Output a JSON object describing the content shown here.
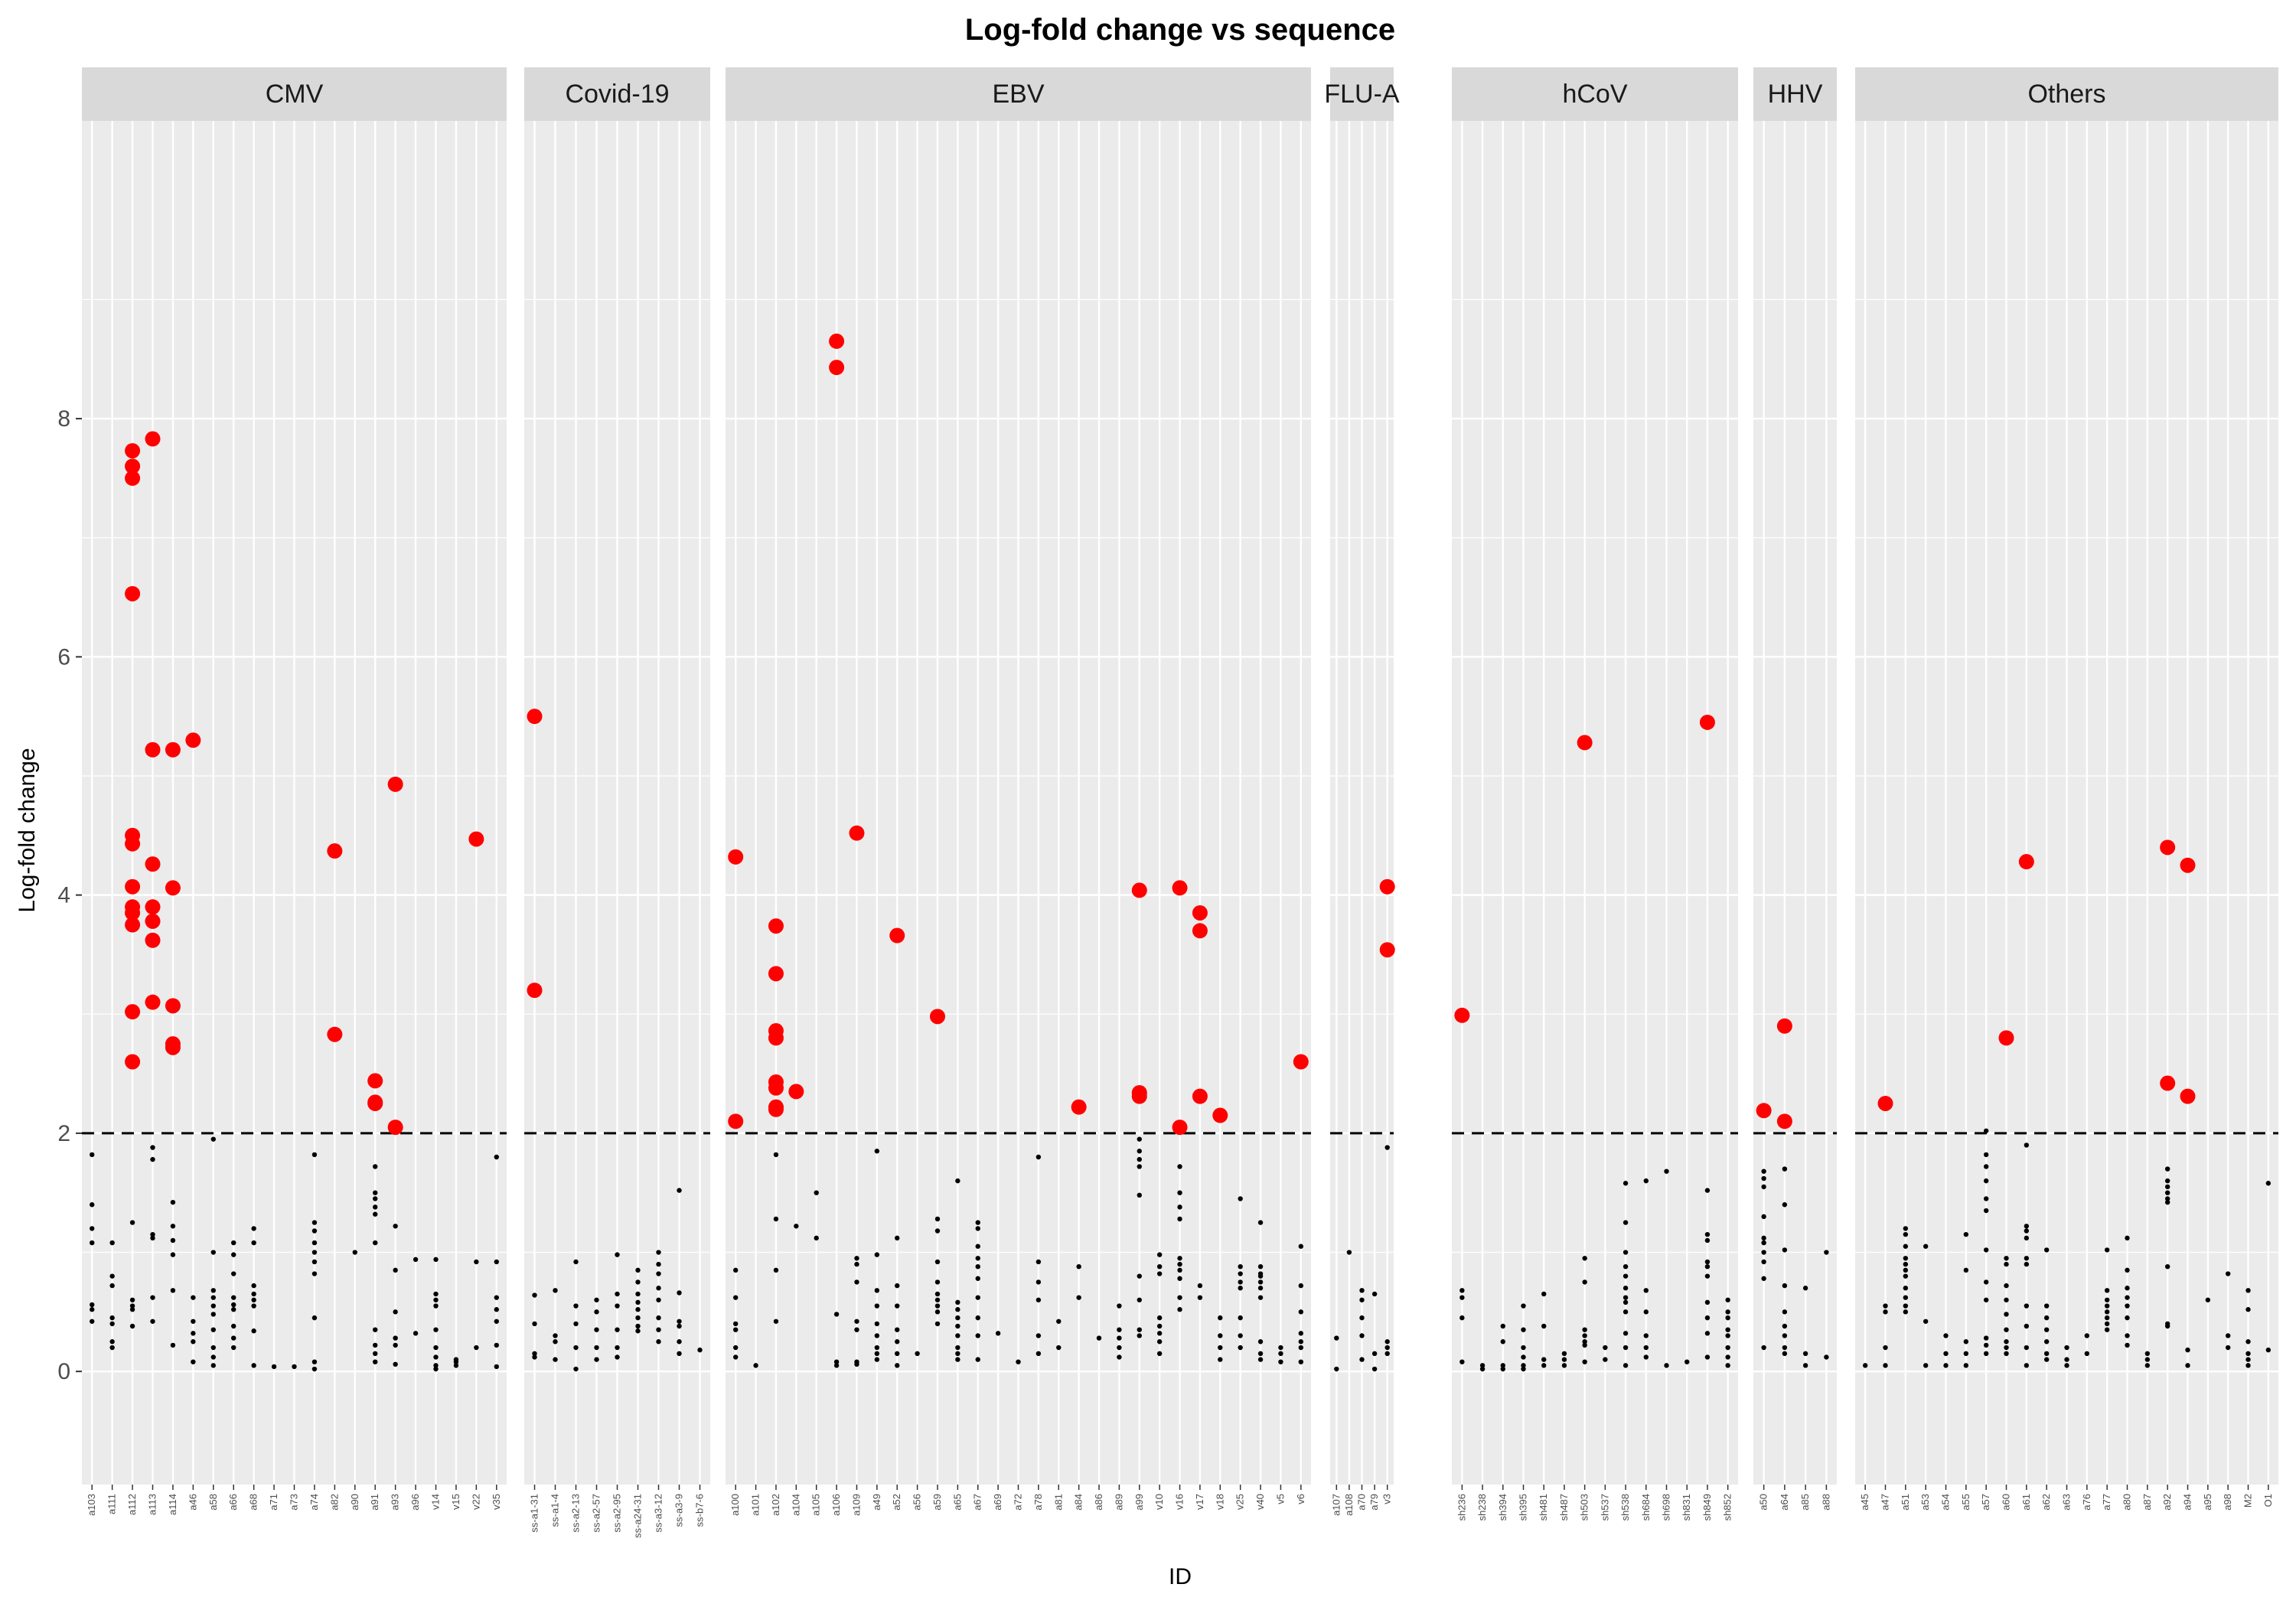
{
  "chart_data": {
    "type": "scatter",
    "title": "Log-fold change vs sequence",
    "xlabel": "ID",
    "ylabel": "Log-fold change",
    "ylim": [
      -0.95,
      10.5
    ],
    "yticks": [
      0,
      2,
      4,
      6,
      8
    ],
    "threshold": 2,
    "grid": true,
    "facet_by": "virus",
    "colors": {
      "above": "#ff0000",
      "below": "#000000",
      "strip": "#d9d9d9",
      "panel": "#ebebeb",
      "grid": "#ffffff"
    },
    "facets": [
      {
        "name": "CMV",
        "ids": [
          "a103",
          "a111",
          "a112",
          "a113",
          "a114",
          "a46",
          "a58",
          "a66",
          "a68",
          "a71",
          "a73",
          "a74",
          "a82",
          "a90",
          "a91",
          "a93",
          "a96",
          "v14",
          "v15",
          "v22",
          "v35"
        ],
        "points": {
          "a112": [
            7.73,
            7.6,
            7.5,
            6.53,
            4.5,
            4.43,
            4.07,
            3.9,
            3.85,
            3.75,
            3.02,
            2.6
          ],
          "a113": [
            7.83,
            5.22,
            4.26,
            3.9,
            3.78,
            3.62,
            3.1
          ],
          "a114": [
            5.22,
            4.06,
            3.07,
            2.75,
            2.72
          ],
          "a46": [
            5.3
          ],
          "a82": [
            4.37,
            2.83
          ],
          "a91": [
            2.44,
            2.26,
            2.25
          ],
          "a93": [
            4.93,
            2.05
          ],
          "v22": [
            4.47
          ]
        },
        "low_points": {
          "a103": [
            1.82,
            1.4,
            1.2,
            1.08,
            0.56,
            0.52,
            0.42
          ],
          "a111": [
            1.08,
            0.8,
            0.72,
            0.45,
            0.4,
            0.25,
            0.2
          ],
          "a112": [
            1.25,
            0.6,
            0.55,
            0.52,
            0.38
          ],
          "a113": [
            1.88,
            1.78,
            1.15,
            1.12,
            0.62,
            0.42
          ],
          "a114": [
            1.42,
            1.22,
            1.1,
            0.98,
            0.68,
            0.22
          ],
          "a46": [
            0.62,
            0.42,
            0.32,
            0.25,
            0.08
          ],
          "a58": [
            1.95,
            1.0,
            0.68,
            0.62,
            0.55,
            0.48,
            0.35,
            0.2,
            0.12,
            0.05
          ],
          "a66": [
            1.08,
            0.98,
            0.82,
            0.62,
            0.56,
            0.52,
            0.38,
            0.28,
            0.2
          ],
          "a68": [
            1.2,
            1.08,
            0.72,
            0.65,
            0.6,
            0.55,
            0.34,
            0.05
          ],
          "a71": [
            0.04
          ],
          "a73": [
            0.04
          ],
          "a74": [
            1.82,
            1.25,
            1.18,
            1.08,
            1.0,
            0.92,
            0.82,
            0.45,
            0.08,
            0.02
          ],
          "a90": [
            1.0
          ],
          "a91": [
            1.72,
            1.5,
            1.45,
            1.38,
            1.32,
            1.08,
            0.35,
            0.22,
            0.15,
            0.08
          ],
          "a93": [
            1.22,
            0.85,
            0.5,
            0.28,
            0.22,
            0.06
          ],
          "a96": [
            0.94,
            0.32
          ],
          "v14": [
            0.94,
            0.65,
            0.6,
            0.55,
            0.35,
            0.2,
            0.12,
            0.05,
            0.02
          ],
          "v15": [
            0.1,
            0.08,
            0.05
          ],
          "v22": [
            0.92,
            0.2
          ],
          "v35": [
            1.8,
            0.92,
            0.62,
            0.52,
            0.42,
            0.22,
            0.04
          ]
        }
      },
      {
        "name": "Covid-19",
        "ids": [
          "ss-a1-31",
          "ss-a1-4",
          "ss-a2-13",
          "ss-a2-57",
          "ss-a2-95",
          "ss-a24-31",
          "ss-a3-12",
          "ss-a3-9",
          "ss-b7-6"
        ],
        "points": {
          "ss-a1-31": [
            5.5,
            3.2
          ]
        },
        "low_points": {
          "ss-a1-31": [
            0.64,
            0.4,
            0.15,
            0.12
          ],
          "ss-a1-4": [
            0.68,
            0.3,
            0.25,
            0.1
          ],
          "ss-a2-13": [
            0.92,
            0.55,
            0.4,
            0.2,
            0.02
          ],
          "ss-a2-57": [
            0.6,
            0.5,
            0.35,
            0.2,
            0.1
          ],
          "ss-a2-95": [
            0.98,
            0.65,
            0.55,
            0.35,
            0.2,
            0.12
          ],
          "ss-a24-31": [
            0.85,
            0.75,
            0.65,
            0.58,
            0.52,
            0.45,
            0.38,
            0.34
          ],
          "ss-a3-12": [
            1.0,
            0.9,
            0.82,
            0.7,
            0.6,
            0.45,
            0.35,
            0.25
          ],
          "ss-a3-9": [
            1.52,
            0.66,
            0.42,
            0.38,
            0.25,
            0.15
          ],
          "ss-b7-6": [
            0.18
          ]
        }
      },
      {
        "name": "EBV",
        "ids": [
          "a100",
          "a101",
          "a102",
          "a104",
          "a105",
          "a106",
          "a109",
          "a49",
          "a52",
          "a56",
          "a59",
          "a65",
          "a67",
          "a69",
          "a72",
          "a78",
          "a81",
          "a84",
          "a86",
          "a89",
          "a99",
          "v10",
          "v16",
          "v17",
          "v18",
          "v25",
          "v40",
          "v5",
          "v6"
        ],
        "points": {
          "a100": [
            4.32,
            2.1
          ],
          "a102": [
            3.74,
            3.34,
            2.86,
            2.8,
            2.43,
            2.38,
            2.22,
            2.2
          ],
          "a104": [
            2.35
          ],
          "a106": [
            8.65,
            8.43
          ],
          "a109": [
            4.52
          ],
          "a52": [
            3.66
          ],
          "a59": [
            2.98
          ],
          "a84": [
            2.22
          ],
          "a99": [
            4.04,
            2.34,
            2.31
          ],
          "v16": [
            4.06,
            2.05
          ],
          "v17": [
            3.85,
            3.7,
            2.31
          ],
          "v18": [
            2.15
          ],
          "v6": [
            2.6
          ]
        },
        "low_points": {
          "a100": [
            0.85,
            0.62,
            0.4,
            0.35,
            0.2,
            0.12
          ],
          "a101": [
            0.05
          ],
          "a102": [
            1.82,
            1.28,
            0.85,
            0.42
          ],
          "a104": [
            1.22
          ],
          "a105": [
            1.5,
            1.12
          ],
          "a106": [
            0.48,
            0.08,
            0.05
          ],
          "a109": [
            0.95,
            0.9,
            0.75,
            0.42,
            0.35,
            0.08,
            0.06
          ],
          "a49": [
            1.85,
            0.98,
            0.68,
            0.55,
            0.4,
            0.3,
            0.2,
            0.15,
            0.1
          ],
          "a52": [
            1.12,
            0.72,
            0.55,
            0.35,
            0.25,
            0.15,
            0.05
          ],
          "a56": [
            0.15
          ],
          "a59": [
            1.28,
            1.18,
            0.92,
            0.75,
            0.65,
            0.6,
            0.55,
            0.5,
            0.4
          ],
          "a65": [
            1.6,
            0.58,
            0.52,
            0.45,
            0.38,
            0.3,
            0.2,
            0.15,
            0.1
          ],
          "a67": [
            1.25,
            1.2,
            1.05,
            0.95,
            0.88,
            0.78,
            0.62,
            0.45,
            0.3,
            0.1
          ],
          "a69": [
            0.32
          ],
          "a72": [
            0.08
          ],
          "a78": [
            1.8,
            0.92,
            0.75,
            0.6,
            0.3,
            0.15
          ],
          "a81": [
            0.42,
            0.2
          ],
          "a84": [
            0.88,
            0.62
          ],
          "a86": [
            0.28
          ],
          "a89": [
            0.55,
            0.35,
            0.28,
            0.2,
            0.12
          ],
          "a99": [
            1.95,
            1.85,
            1.78,
            1.72,
            1.48,
            0.8,
            0.6,
            0.35,
            0.3
          ],
          "v10": [
            0.98,
            0.88,
            0.82,
            0.45,
            0.38,
            0.32,
            0.25,
            0.15
          ],
          "v16": [
            1.72,
            1.5,
            1.38,
            1.28,
            0.95,
            0.9,
            0.85,
            0.78,
            0.62,
            0.52
          ],
          "v17": [
            0.72,
            0.62
          ],
          "v18": [
            0.45,
            0.3,
            0.2,
            0.1
          ],
          "v25": [
            1.45,
            0.88,
            0.82,
            0.75,
            0.7,
            0.45,
            0.3,
            0.2
          ],
          "v40": [
            1.25,
            0.88,
            0.82,
            0.8,
            0.75,
            0.7,
            0.62,
            0.25,
            0.15,
            0.1
          ],
          "v5": [
            0.2,
            0.15,
            0.08
          ],
          "v6": [
            1.05,
            0.72,
            0.5,
            0.32,
            0.25,
            0.2,
            0.08
          ]
        }
      },
      {
        "name": "FLU-A",
        "ids": [
          "a107",
          "a108",
          "a70",
          "a79",
          "v3"
        ],
        "points": {
          "v3": [
            4.07,
            3.54
          ]
        },
        "low_points": {
          "a107": [
            0.28,
            0.02
          ],
          "a108": [
            1.0
          ],
          "a70": [
            0.68,
            0.6,
            0.45,
            0.3,
            0.1
          ],
          "a79": [
            0.65,
            0.15,
            0.02
          ],
          "v3": [
            1.88,
            0.25,
            0.2,
            0.15
          ]
        }
      },
      {
        "name": "hCoV",
        "ids": [
          "sh236",
          "sh238",
          "sh394",
          "sh395",
          "sh481",
          "sh487",
          "sh503",
          "sh537",
          "sh538",
          "sh684",
          "sh698",
          "sh831",
          "sh849",
          "sh852"
        ],
        "points": {
          "sh236": [
            2.99
          ],
          "sh503": [
            5.28
          ],
          "sh849": [
            5.45
          ]
        },
        "low_points": {
          "sh236": [
            0.68,
            0.62,
            0.45,
            0.08
          ],
          "sh238": [
            0.05,
            0.02
          ],
          "sh394": [
            0.38,
            0.25,
            0.05,
            0.02
          ],
          "sh395": [
            0.55,
            0.35,
            0.2,
            0.12,
            0.05,
            0.02
          ],
          "sh481": [
            0.65,
            0.38,
            0.1,
            0.05
          ],
          "sh487": [
            0.15,
            0.1,
            0.05
          ],
          "sh503": [
            0.95,
            0.75,
            0.35,
            0.3,
            0.25,
            0.22,
            0.08
          ],
          "sh537": [
            0.2,
            0.1
          ],
          "sh538": [
            1.58,
            1.25,
            1.0,
            0.88,
            0.8,
            0.7,
            0.62,
            0.58,
            0.5,
            0.32,
            0.2,
            0.05
          ],
          "sh684": [
            1.6,
            0.68,
            0.5,
            0.3,
            0.2,
            0.12
          ],
          "sh698": [
            1.68,
            0.05
          ],
          "sh831": [
            0.08
          ],
          "sh849": [
            1.52,
            1.15,
            1.1,
            0.92,
            0.88,
            0.8,
            0.58,
            0.45,
            0.32,
            0.12
          ],
          "sh852": [
            0.6,
            0.5,
            0.45,
            0.35,
            0.3,
            0.2,
            0.12,
            0.05
          ]
        }
      },
      {
        "name": "HHV",
        "ids": [
          "a50",
          "a64",
          "a85",
          "a88"
        ],
        "points": {
          "a50": [
            2.19
          ],
          "a64": [
            2.9,
            2.1
          ]
        },
        "low_points": {
          "a50": [
            1.68,
            1.62,
            1.55,
            1.3,
            1.12,
            1.08,
            1.0,
            0.92,
            0.78,
            0.2
          ],
          "a64": [
            1.7,
            1.4,
            1.02,
            0.72,
            0.5,
            0.38,
            0.3,
            0.2,
            0.15
          ],
          "a85": [
            0.7,
            0.15,
            0.05
          ],
          "a88": [
            1.0,
            0.12
          ]
        }
      },
      {
        "name": "Others",
        "ids": [
          "a45",
          "a47",
          "a51",
          "a53",
          "a54",
          "a55",
          "a57",
          "a60",
          "a61",
          "a62",
          "a63",
          "a76",
          "a77",
          "a80",
          "a87",
          "a92",
          "a94",
          "a95",
          "a98",
          "M2",
          "O1"
        ],
        "points": {
          "a47": [
            2.25
          ],
          "a60": [
            2.8
          ],
          "a61": [
            4.28
          ],
          "a92": [
            4.4,
            2.42
          ],
          "a94": [
            4.25,
            2.31
          ]
        },
        "low_points": {
          "a45": [
            0.05
          ],
          "a47": [
            0.55,
            0.5,
            0.2,
            0.05
          ],
          "a51": [
            1.2,
            1.15,
            1.05,
            0.95,
            0.9,
            0.85,
            0.8,
            0.7,
            0.62,
            0.55,
            0.5
          ],
          "a53": [
            1.05,
            0.42,
            0.05
          ],
          "a54": [
            0.3,
            0.15,
            0.05
          ],
          "a55": [
            1.15,
            0.85,
            0.25,
            0.15,
            0.05
          ],
          "a57": [
            2.02,
            1.82,
            1.72,
            1.6,
            1.45,
            1.35,
            1.02,
            0.75,
            0.6,
            0.28,
            0.22,
            0.15
          ],
          "a60": [
            0.95,
            0.9,
            0.72,
            0.6,
            0.48,
            0.35,
            0.25,
            0.2,
            0.15
          ],
          "a61": [
            1.9,
            1.22,
            1.18,
            1.12,
            0.95,
            0.9,
            0.55,
            0.38,
            0.2,
            0.05
          ],
          "a62": [
            1.02,
            0.55,
            0.45,
            0.35,
            0.25,
            0.15,
            0.1
          ],
          "a63": [
            0.2,
            0.1,
            0.05
          ],
          "a76": [
            0.3,
            0.15
          ],
          "a77": [
            1.02,
            0.68,
            0.6,
            0.55,
            0.5,
            0.45,
            0.4,
            0.35
          ],
          "a80": [
            1.12,
            0.85,
            0.7,
            0.62,
            0.55,
            0.45,
            0.3,
            0.22
          ],
          "a87": [
            0.15,
            0.1,
            0.05
          ],
          "a92": [
            1.7,
            1.6,
            1.55,
            1.5,
            1.45,
            1.42,
            0.88,
            0.4,
            0.38
          ],
          "a94": [
            0.18,
            0.05
          ],
          "a95": [
            0.6
          ],
          "a98": [
            0.82,
            0.3,
            0.2
          ],
          "M2": [
            0.68,
            0.52,
            0.25,
            0.15,
            0.1,
            0.05
          ],
          "O1": [
            1.58,
            0.18
          ]
        }
      }
    ]
  }
}
